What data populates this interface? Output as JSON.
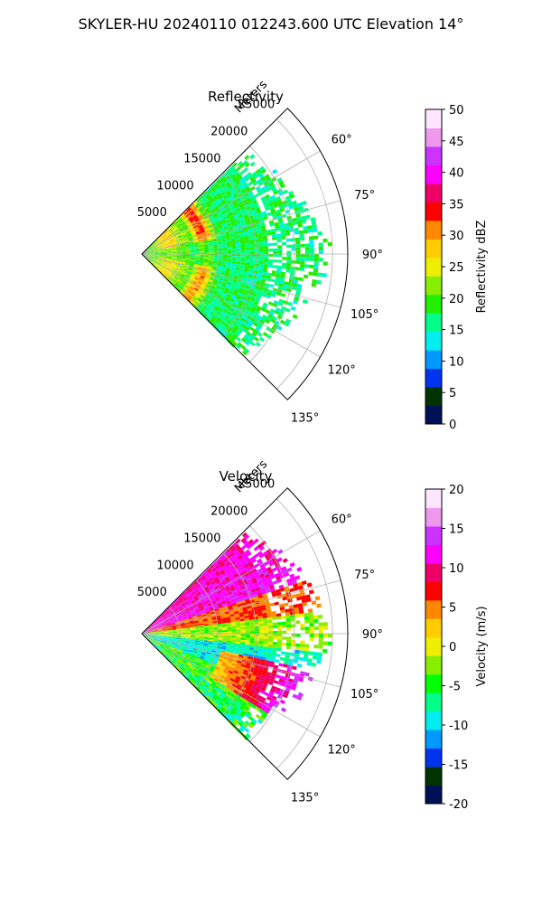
{
  "title": "SKYLER-HU  20240110  012243.600 UTC Elevation 14°",
  "chart_data": [
    {
      "type": "heatmap",
      "projection": "polar-sector",
      "title": "Reflectivity",
      "radial_label": "Meters",
      "radial_ticks": [
        "5000",
        "10000",
        "15000",
        "20000",
        "25000"
      ],
      "radial_tick_values": [
        5000,
        10000,
        15000,
        20000,
        25000
      ],
      "r_max": 27000,
      "angle_ticks": [
        "60°",
        "75°",
        "90°",
        "105°",
        "120°",
        "135°"
      ],
      "angle_tick_values": [
        60,
        75,
        90,
        105,
        120,
        135
      ],
      "theta_range": [
        45,
        135
      ],
      "colorbar": {
        "label": "Reflectivity dBZ",
        "range": [
          0,
          50
        ],
        "ticks": [
          "0",
          "5",
          "10",
          "15",
          "20",
          "25",
          "30",
          "35",
          "40",
          "45",
          "50"
        ],
        "colormap": [
          "#001055",
          "#003300",
          "#0033ee",
          "#0099ff",
          "#00eeee",
          "#00ff88",
          "#22ee00",
          "#88ee00",
          "#eeee00",
          "#ffcc00",
          "#ff8800",
          "#ff0000",
          "#ee0066",
          "#ff00ff",
          "#cc33ff",
          "#ee99ee",
          "#ffe6ff"
        ]
      },
      "field_description": "reflectivity values mostly 15-25 dBZ; arcs of 30-40 dBZ near 6000-10000 m on the 45-75 deg side; sparse returns beyond 20000 m"
    },
    {
      "type": "heatmap",
      "projection": "polar-sector",
      "title": "Velocity",
      "radial_label": "Meters",
      "radial_ticks": [
        "5000",
        "10000",
        "15000",
        "20000",
        "25000"
      ],
      "radial_tick_values": [
        5000,
        10000,
        15000,
        20000,
        25000
      ],
      "r_max": 27000,
      "angle_ticks": [
        "60°",
        "75°",
        "90°",
        "105°",
        "120°",
        "135°"
      ],
      "angle_tick_values": [
        60,
        75,
        90,
        105,
        120,
        135
      ],
      "theta_range": [
        45,
        135
      ],
      "colorbar": {
        "label": "Velocity (m/s)",
        "range": [
          -20,
          20
        ],
        "ticks": [
          "-20",
          "-15",
          "-10",
          "-5",
          "0",
          "5",
          "10",
          "15",
          "20"
        ],
        "colormap": [
          "#001055",
          "#003300",
          "#0033ee",
          "#0099ff",
          "#00eeee",
          "#00ff88",
          "#00ff00",
          "#88ee00",
          "#eeee00",
          "#ffcc00",
          "#ff8800",
          "#ff0000",
          "#ee0066",
          "#ff00ff",
          "#cc33ff",
          "#ee99ee",
          "#ffe6ff"
        ]
      },
      "field_description": "strong positive velocities (10-15 m/s) along the 50-70 deg edge, near zero around 85-95 deg, negative (-5 to -12 m/s) bands toward 100-115 deg, positive patch near 110-125 deg at 15000-20000 m"
    }
  ]
}
